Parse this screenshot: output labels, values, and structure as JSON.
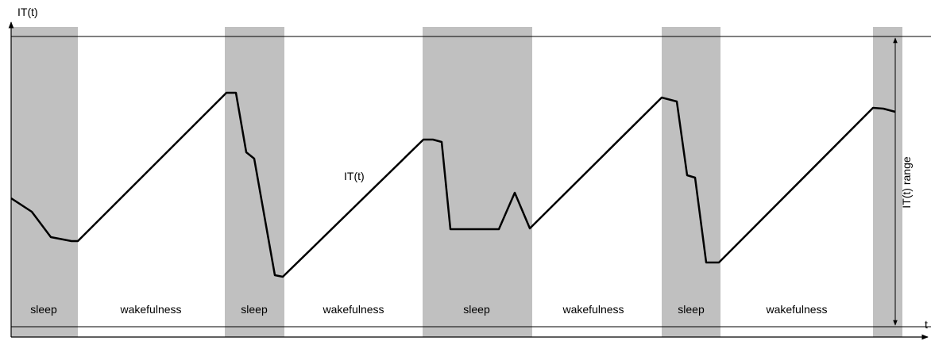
{
  "axes": {
    "y_label": "IT(t)",
    "x_label": "t"
  },
  "curve_label": "IT(t)",
  "range_label": "IT(t) range",
  "phases": [
    {
      "label": "sleep"
    },
    {
      "label": "wakefulness"
    },
    {
      "label": "sleep"
    },
    {
      "label": "wakefulness"
    },
    {
      "label": "sleep"
    },
    {
      "label": "wakefulness"
    },
    {
      "label": "sleep"
    },
    {
      "label": "wakefulness"
    }
  ]
}
